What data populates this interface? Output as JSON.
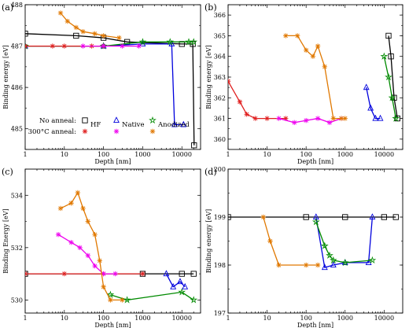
{
  "chart_data": [
    {
      "type": "line",
      "panel_label": "(a)",
      "xlabel": "Depth [nm]",
      "ylabel": "Binding energy [eV]",
      "x_scale": "log",
      "xlim": [
        1,
        30000
      ],
      "ylim": [
        484.5,
        488
      ],
      "x_ticks": [
        "1",
        "10",
        "100",
        "1000",
        "10000"
      ],
      "y_ticks": [
        "485",
        "486",
        "487",
        "488"
      ],
      "series": [
        {
          "name": "HF",
          "color": "#000000",
          "x": [
            1,
            20,
            100,
            400,
            10000,
            19000,
            20500
          ],
          "y": [
            487.3,
            487.25,
            487.2,
            487.1,
            487.05,
            487.05,
            484.6
          ]
        },
        {
          "name": "Native",
          "color": "#0000dd",
          "x": [
            1,
            100,
            1000,
            5500,
            6500,
            11000
          ],
          "y": [
            487.0,
            487.0,
            487.05,
            487.05,
            485.1,
            485.1
          ]
        },
        {
          "name": "Anodized",
          "color": "#008a00",
          "x": [
            1,
            100,
            1000,
            5000,
            15000,
            20000
          ],
          "y": [
            487.0,
            487.0,
            487.1,
            487.1,
            487.1,
            487.1
          ]
        },
        {
          "name": "HF 300°C",
          "color": "#e02020",
          "x": [
            1,
            5,
            10,
            50,
            100
          ],
          "y": [
            487.0,
            487.0,
            487.0,
            487.0,
            487.0
          ]
        },
        {
          "name": "Native 300°C",
          "color": "#ee00ee",
          "x": [
            30,
            100,
            300,
            800
          ],
          "y": [
            487.0,
            487.0,
            487.0,
            487.0
          ]
        },
        {
          "name": "Anodized 300°C",
          "color": "#e07800",
          "x": [
            8,
            12,
            20,
            30,
            60,
            100,
            250
          ],
          "y": [
            487.8,
            487.6,
            487.45,
            487.35,
            487.3,
            487.25,
            487.2
          ]
        }
      ],
      "legend": {
        "placement": "bottom-left",
        "row1_label": "No anneal:",
        "row2_label": "300°C anneal:",
        "entries": [
          "HF",
          "Native",
          "Anodized"
        ]
      }
    },
    {
      "type": "line",
      "panel_label": "(b)",
      "xlabel": "Depth [nm]",
      "ylabel": "Binding energy [eV]",
      "x_scale": "log",
      "xlim": [
        1,
        30000
      ],
      "ylim": [
        359.5,
        366.5
      ],
      "x_ticks": [
        "1",
        "10",
        "100",
        "1000",
        "10000"
      ],
      "y_ticks": [
        "360",
        "361",
        "362",
        "363",
        "364",
        "365",
        "366"
      ],
      "series": [
        {
          "name": "HF",
          "color": "#000000",
          "x": [
            13000,
            15000,
            18000,
            22000
          ],
          "y": [
            365.0,
            364.0,
            362.0,
            361.0
          ]
        },
        {
          "name": "Native",
          "color": "#0000dd",
          "x": [
            3500,
            4500,
            6000,
            8000
          ],
          "y": [
            362.5,
            361.5,
            361.0,
            361.0
          ]
        },
        {
          "name": "Anodized",
          "color": "#008a00",
          "x": [
            10000,
            13000,
            16000,
            20000
          ],
          "y": [
            364.0,
            363.0,
            362.0,
            361.0
          ]
        },
        {
          "name": "HF 300°C",
          "color": "#e02020",
          "x": [
            1,
            2,
            3,
            5,
            10,
            30
          ],
          "y": [
            362.8,
            361.8,
            361.2,
            361.0,
            361.0,
            361.0
          ]
        },
        {
          "name": "Native 300°C",
          "color": "#ee00ee",
          "x": [
            20,
            50,
            100,
            200,
            400,
            800
          ],
          "y": [
            361.0,
            360.8,
            360.9,
            361.0,
            360.8,
            361.0
          ]
        },
        {
          "name": "Anodized 300°C",
          "color": "#e07800",
          "x": [
            30,
            60,
            100,
            150,
            200,
            300,
            500,
            800,
            1000
          ],
          "y": [
            365.0,
            365.0,
            364.3,
            364.0,
            364.5,
            363.5,
            361.0,
            361.0,
            361.0
          ]
        }
      ]
    },
    {
      "type": "line",
      "panel_label": "(c)",
      "xlabel": "Depth [nm]",
      "ylabel": "Binding Energy [eV]",
      "x_scale": "log",
      "xlim": [
        1,
        30000
      ],
      "ylim": [
        529.5,
        535
      ],
      "x_ticks": [
        "1",
        "10",
        "100",
        "1000",
        "10000"
      ],
      "y_ticks": [
        "530",
        "532",
        "534"
      ],
      "series": [
        {
          "name": "HF",
          "color": "#000000",
          "x": [
            1,
            1000,
            10000,
            20000
          ],
          "y": [
            531.0,
            531.0,
            531.0,
            531.0
          ]
        },
        {
          "name": "Native",
          "color": "#0000dd",
          "x": [
            4000,
            6000,
            9000,
            12000
          ],
          "y": [
            531.0,
            530.5,
            530.7,
            530.5
          ]
        },
        {
          "name": "Anodized",
          "color": "#008a00",
          "x": [
            150,
            400,
            10000,
            20000
          ],
          "y": [
            530.2,
            530.0,
            530.3,
            530.0
          ]
        },
        {
          "name": "HF 300°C",
          "color": "#e02020",
          "x": [
            1,
            10,
            100,
            1000
          ],
          "y": [
            531.0,
            531.0,
            531.0,
            531.0
          ]
        },
        {
          "name": "Native 300°C",
          "color": "#ee00ee",
          "x": [
            7,
            15,
            25,
            40,
            60,
            100,
            200
          ],
          "y": [
            532.5,
            532.2,
            532.0,
            531.7,
            531.3,
            531.0,
            531.0
          ]
        },
        {
          "name": "Anodized 300°C",
          "color": "#e07800",
          "x": [
            8,
            15,
            22,
            30,
            40,
            60,
            80,
            100,
            150,
            300
          ],
          "y": [
            533.5,
            533.7,
            534.1,
            533.5,
            533.0,
            532.5,
            531.5,
            530.5,
            530.0,
            530.0
          ]
        }
      ]
    },
    {
      "type": "line",
      "panel_label": "(d)",
      "xlabel": "Depth [nm]",
      "ylabel": "Binding energy [eV]",
      "x_scale": "log",
      "xlim": [
        1,
        30000
      ],
      "ylim": [
        197,
        200
      ],
      "x_ticks": [
        "1",
        "10",
        "100",
        "1000",
        "10000"
      ],
      "y_ticks": [
        "197",
        "198",
        "199",
        "200"
      ],
      "series": [
        {
          "name": "HF",
          "color": "#000000",
          "x": [
            1,
            100,
            1000,
            10000,
            20000
          ],
          "y": [
            199.0,
            199.0,
            199.0,
            199.0,
            199.0
          ]
        },
        {
          "name": "Native",
          "color": "#0000dd",
          "x": [
            180,
            300,
            500,
            1000,
            4000,
            5000
          ],
          "y": [
            199.0,
            197.95,
            198.0,
            198.05,
            198.05,
            199.0
          ]
        },
        {
          "name": "Anodized",
          "color": "#008a00",
          "x": [
            180,
            300,
            400,
            500,
            1000,
            5000
          ],
          "y": [
            198.9,
            198.4,
            198.2,
            198.1,
            198.05,
            198.1
          ]
        },
        {
          "name": "Anodized 300°C",
          "color": "#e07800",
          "x": [
            8,
            12,
            20,
            100,
            200
          ],
          "y": [
            199.0,
            198.5,
            198.0,
            198.0,
            198.0
          ]
        }
      ]
    }
  ]
}
